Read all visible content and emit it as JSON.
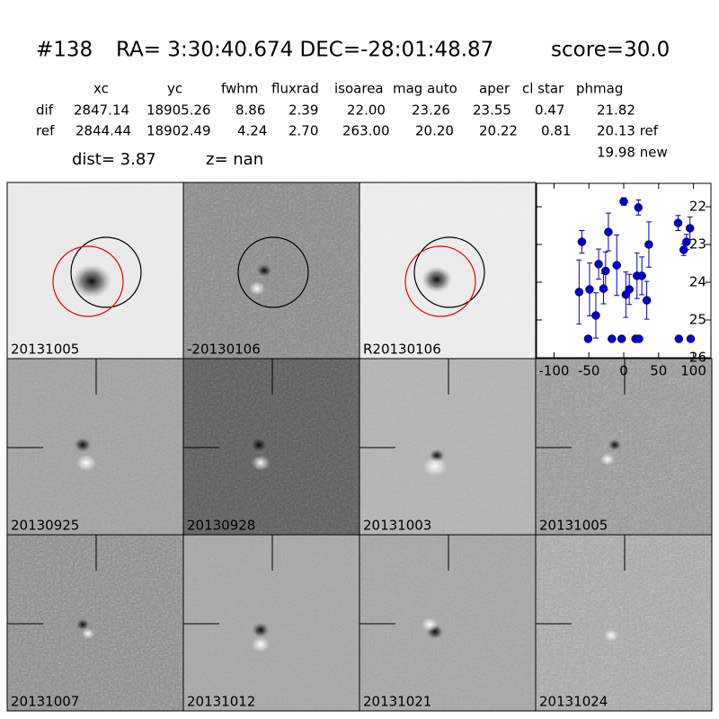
{
  "header": {
    "id": "#138",
    "coords": "RA= 3:30:40.674 DEC=-28:01:48.87",
    "score": "score=30.0"
  },
  "table": {
    "columns": [
      "xc",
      "yc",
      "fwhm",
      "fluxrad",
      "isoarea",
      "mag auto",
      "aper",
      "cl star",
      "phmag"
    ],
    "rows": [
      [
        "dif",
        "2847.14",
        "18905.26",
        "8.86",
        "2.39",
        "22.00",
        "23.26",
        "23.55",
        "0.47",
        "21.82"
      ],
      [
        "ref",
        "2844.44",
        "18902.49",
        "4.24",
        "2.70",
        "263.00",
        "20.20",
        "20.22",
        "0.81",
        "20.13 ref"
      ]
    ],
    "extra": "19.98 new"
  },
  "dist": "dist=  3.87",
  "z": "z=   nan",
  "stamps": [
    {
      "label": "20131005"
    },
    {
      "label": "-20130106"
    },
    {
      "label": "R20130106"
    },
    {
      "label": "20130925"
    },
    {
      "label": "20130928"
    },
    {
      "label": "20131003"
    },
    {
      "label": "20131005",
      "label_color": "#ff0000"
    },
    {
      "label": "20131007"
    },
    {
      "label": "20131012"
    },
    {
      "label": "20131021"
    },
    {
      "label": "20131024"
    }
  ],
  "chart_data": {
    "type": "scatter",
    "color": "#0000cc",
    "x": [
      -64,
      -60,
      -51,
      -49,
      -40,
      -36,
      -29,
      -26,
      -22,
      -17,
      -10,
      -3,
      0,
      3,
      8,
      17,
      19,
      21,
      22,
      26,
      33,
      36,
      78,
      79,
      86,
      90,
      95,
      96
    ],
    "values": [
      24.26,
      22.93,
      25.5,
      24.19,
      24.88,
      23.52,
      24.17,
      23.7,
      22.67,
      25.5,
      23.55,
      25.5,
      21.86,
      24.33,
      24.19,
      25.5,
      23.83,
      22.02,
      25.5,
      23.83,
      24.48,
      23.0,
      22.43,
      25.5,
      23.14,
      22.93,
      22.57,
      25.5
    ],
    "errors": [
      0.85,
      0.3,
      0.05,
      0.7,
      0.6,
      0.4,
      0.4,
      0.5,
      0.5,
      0.05,
      0.8,
      0.05,
      0.1,
      0.6,
      0.4,
      0.05,
      0.6,
      0.2,
      0.05,
      0.5,
      0.5,
      0.6,
      0.2,
      0.05,
      0.15,
      0.2,
      0.3,
      0.05
    ],
    "xlim": [
      -125,
      125
    ],
    "ylim": [
      21.38,
      26
    ],
    "y_inverted": true,
    "xticks": [
      -100,
      -50,
      0,
      50,
      100
    ],
    "yticks": [
      22,
      23,
      24,
      25,
      26
    ]
  }
}
